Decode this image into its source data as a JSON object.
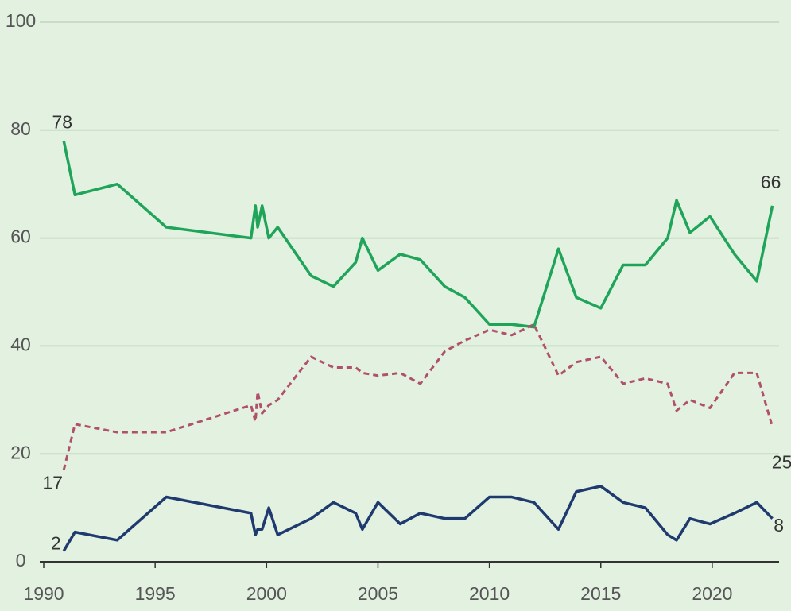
{
  "chart_data": {
    "type": "line",
    "x": [
      1990.9,
      1991.4,
      1993.3,
      1995.5,
      1999.3,
      1999.5,
      1999.6,
      1999.8,
      2000.1,
      2000.5,
      2002.0,
      2003.0,
      2004.0,
      2004.3,
      2005.0,
      2006.0,
      2006.9,
      2008.0,
      2008.9,
      2010.0,
      2011.0,
      2012.0,
      2013.1,
      2013.9,
      2015.0,
      2016.0,
      2017.0,
      2018.0,
      2018.4,
      2019.0,
      2019.9,
      2021.0,
      2022.0,
      2022.7
    ],
    "series": [
      {
        "color": "#1fa45a",
        "dashed": false,
        "values": [
          78,
          68,
          70,
          62,
          60,
          66,
          62,
          66,
          60,
          62,
          53,
          51,
          55.5,
          60,
          54,
          57,
          56,
          51,
          49,
          44,
          44,
          43.5,
          58,
          49,
          47,
          55,
          55,
          60,
          67,
          61,
          64,
          57,
          52,
          66
        ]
      },
      {
        "color": "#b0506a",
        "dashed": true,
        "values": [
          17,
          25.5,
          24,
          24,
          29,
          26,
          31.5,
          27.5,
          29,
          30,
          38,
          36,
          36,
          35,
          34.5,
          35,
          33,
          39,
          41,
          43,
          42,
          44,
          34.5,
          37,
          38,
          33,
          34,
          33,
          28,
          30,
          28.5,
          35,
          35,
          25
        ]
      },
      {
        "color": "#1f3a6e",
        "dashed": false,
        "values": [
          2,
          5.5,
          4,
          12,
          9,
          5,
          6,
          6,
          10,
          5,
          8,
          11,
          9,
          6,
          11,
          7,
          9,
          8,
          8,
          12,
          12,
          11,
          6,
          13,
          14,
          11,
          10,
          5,
          4,
          8,
          7,
          9,
          11,
          8
        ]
      }
    ],
    "xlim": [
      1989.75,
      2023
    ],
    "xticks": [
      1990,
      1995,
      2000,
      2005,
      2010,
      2015,
      2020
    ],
    "ylim": [
      0,
      100
    ],
    "yticks": [
      0,
      20,
      40,
      60,
      80,
      100
    ],
    "grid": true
  }
}
